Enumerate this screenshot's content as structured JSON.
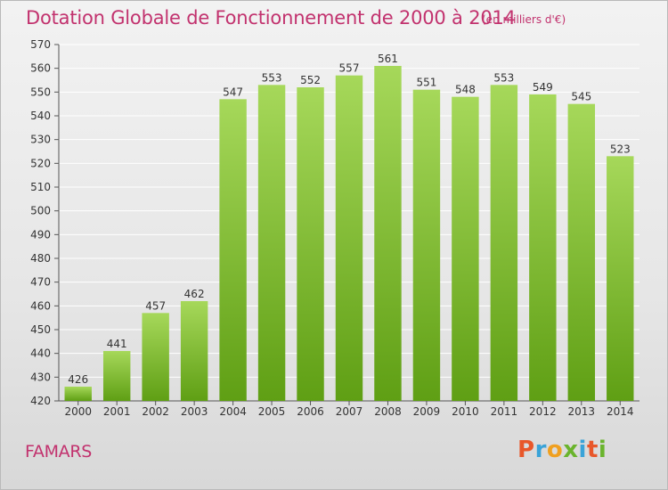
{
  "title": "Dotation Globale de Fonctionnement de 2000 à 2014",
  "subtitle": "(en milliers d'€)",
  "commune": "FAMARS",
  "logo": {
    "letters": [
      "P",
      "r",
      "o",
      "x",
      "i",
      "t",
      "i"
    ],
    "colors": [
      "#e8572a",
      "#3aa3d8",
      "#f0a020",
      "#6ab42d",
      "#3aa3d8",
      "#e8572a",
      "#6ab42d"
    ]
  },
  "colors": {
    "title": "#c2326e",
    "bar_top": "#a6d85a",
    "bar_bottom": "#5f9f14",
    "grid": "#ffffff"
  },
  "chart_data": {
    "type": "bar",
    "categories": [
      "2000",
      "2001",
      "2002",
      "2003",
      "2004",
      "2005",
      "2006",
      "2007",
      "2008",
      "2009",
      "2010",
      "2011",
      "2012",
      "2013",
      "2014"
    ],
    "values": [
      426,
      441,
      457,
      462,
      547,
      553,
      552,
      557,
      561,
      551,
      548,
      553,
      549,
      545,
      523
    ],
    "ylim": [
      420,
      570
    ],
    "yticks": [
      420,
      430,
      440,
      450,
      460,
      470,
      480,
      490,
      500,
      510,
      520,
      530,
      540,
      550,
      560,
      570
    ],
    "grid": true
  }
}
